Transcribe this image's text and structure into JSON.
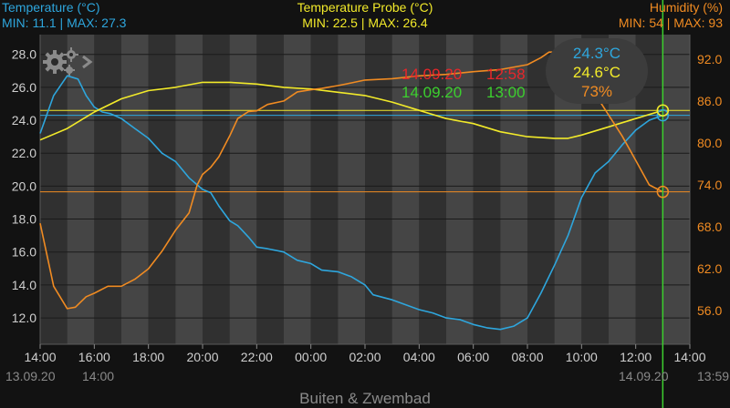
{
  "header": {
    "left": {
      "title": "Temperature (°C)",
      "minmax": "MIN: 11.1 | MAX: 27.3"
    },
    "center": {
      "title": "Temperature Probe (°C)",
      "minmax": "MIN: 22.5 | MAX: 26.4"
    },
    "right": {
      "title": "Humidity (%)",
      "minmax": "MIN: 54 | MAX: 93"
    }
  },
  "footer": {
    "title": "Buiten & Zwembad"
  },
  "icons": {
    "settings": "gears-icon",
    "next": "chevron-right-icon"
  },
  "colors": {
    "temperature": "#2ea6dd",
    "probe": "#f2ea2a",
    "humidity": "#f08b22",
    "cursor": "#3ccf2e",
    "marker_red": "#e8262a",
    "marker_green": "#3ccf2e"
  },
  "markers": {
    "red": {
      "date": "14.09.20",
      "time": "12:58"
    },
    "green": {
      "date": "14.09.20",
      "time": "13:00"
    }
  },
  "tooltip": {
    "temperature": "24.3°C",
    "probe": "24.6°C",
    "humidity": "73%"
  },
  "x_range_labels": {
    "start_date": "13.09.20",
    "start_time": "14:00",
    "end_date": "14.09.20",
    "end_time": "13:59"
  },
  "chart_data": {
    "type": "line",
    "x_unit": "hours since 13.09.20 14:00",
    "x_ticks": [
      "14:00",
      "16:00",
      "18:00",
      "20:00",
      "22:00",
      "00:00",
      "02:00",
      "04:00",
      "06:00",
      "08:00",
      "10:00",
      "12:00",
      "14:00"
    ],
    "y_left": {
      "label": "Temperature (°C)",
      "range": [
        10.4,
        29.2
      ],
      "ticks": [
        "12.0",
        "14.0",
        "16.0",
        "18.0",
        "20.0",
        "22.0",
        "24.0",
        "26.0",
        "28.0"
      ]
    },
    "y_right": {
      "label": "Humidity (%)",
      "range": [
        51.2,
        95.5
      ],
      "ticks": [
        "56.0",
        "62.0",
        "68.0",
        "74.0",
        "80.0",
        "86.0",
        "92.0"
      ]
    },
    "series": [
      {
        "name": "Temperature (°C)",
        "axis": "left",
        "color": "#2ea6dd",
        "x": [
          0,
          0.5,
          1.0,
          1.4,
          1.7,
          2.0,
          2.3,
          2.6,
          3.0,
          3.5,
          4.0,
          4.5,
          5.0,
          5.5,
          6.0,
          6.3,
          6.6,
          7.0,
          7.3,
          7.7,
          8.0,
          8.4,
          9.0,
          9.5,
          10.0,
          10.4,
          11.0,
          11.5,
          12.0,
          12.3,
          13.0,
          13.5,
          14.0,
          14.5,
          15.0,
          15.5,
          16.0,
          16.5,
          17.0,
          17.5,
          18.0,
          18.5,
          19.0,
          19.5,
          20.0,
          20.5,
          21.0,
          21.5,
          22.0,
          22.5,
          23.0
        ],
        "y": [
          23.2,
          25.5,
          26.7,
          26.5,
          25.5,
          24.8,
          24.5,
          24.4,
          24.1,
          23.5,
          22.9,
          22.0,
          21.5,
          20.5,
          19.8,
          19.6,
          18.8,
          17.9,
          17.6,
          16.9,
          16.3,
          16.2,
          16.0,
          15.5,
          15.3,
          14.9,
          14.8,
          14.5,
          14.0,
          13.4,
          13.1,
          12.8,
          12.5,
          12.3,
          12.0,
          11.9,
          11.6,
          11.4,
          11.3,
          11.5,
          12.0,
          13.5,
          15.2,
          17.0,
          19.3,
          20.8,
          21.5,
          22.5,
          23.4,
          24.0,
          24.3
        ]
      },
      {
        "name": "Temperature Probe (°C)",
        "axis": "left",
        "color": "#f2ea2a",
        "x": [
          0,
          1.0,
          2.0,
          3.0,
          4.0,
          5.0,
          6.0,
          7.0,
          8.0,
          9.0,
          10.0,
          11.0,
          12.0,
          13.0,
          14.0,
          15.0,
          16.0,
          17.0,
          18.0,
          19.0,
          19.5,
          20.0,
          21.0,
          22.0,
          23.0
        ],
        "y": [
          22.8,
          23.5,
          24.5,
          25.3,
          25.8,
          26.0,
          26.3,
          26.3,
          26.2,
          26.0,
          25.9,
          25.7,
          25.5,
          25.1,
          24.6,
          24.1,
          23.8,
          23.3,
          23.0,
          22.9,
          22.9,
          23.1,
          23.6,
          24.1,
          24.6
        ]
      },
      {
        "name": "Humidity (%)",
        "axis": "right",
        "color": "#f08b22",
        "x": [
          0,
          0.5,
          1.0,
          1.3,
          1.7,
          2.0,
          2.5,
          3.0,
          3.5,
          4.0,
          4.5,
          5.0,
          5.5,
          5.8,
          6.0,
          6.3,
          6.6,
          7.0,
          7.3,
          7.7,
          8.0,
          8.4,
          9.0,
          9.5,
          10.0,
          10.4,
          11.0,
          11.5,
          12.0,
          13.0,
          14.0,
          15.0,
          16.0,
          17.0,
          18.0,
          18.5,
          18.8,
          19.0,
          19.3,
          19.6,
          20.0,
          20.5,
          21.0,
          21.5,
          22.0,
          22.5,
          23.0
        ],
        "y": [
          68.5,
          59.5,
          56.3,
          56.5,
          58.0,
          58.5,
          59.5,
          59.5,
          60.5,
          62.0,
          64.5,
          67.5,
          70.0,
          74.0,
          75.5,
          76.5,
          78.0,
          81.0,
          83.5,
          84.5,
          84.6,
          85.5,
          86.0,
          87.3,
          87.6,
          87.8,
          88.2,
          88.6,
          89.0,
          89.2,
          89.6,
          89.8,
          90.2,
          90.5,
          91.2,
          92.2,
          93.0,
          93.0,
          93.0,
          92.7,
          91.5,
          87.0,
          84.0,
          81.0,
          77.5,
          74.0,
          73.0
        ]
      }
    ],
    "cursor_x": 23.0,
    "reference_lines": [
      {
        "axis": "left",
        "y": 24.6
      },
      {
        "axis": "left",
        "y": 24.3
      },
      {
        "axis": "right",
        "y": 73.0
      }
    ]
  }
}
